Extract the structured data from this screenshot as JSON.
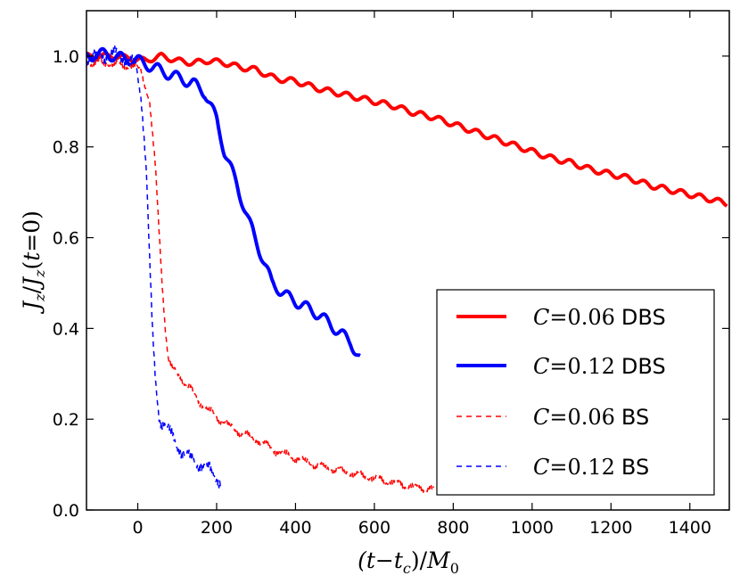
{
  "chart_data": {
    "type": "line",
    "title": "",
    "xlabel": "(t−t_c)/M_0",
    "ylabel": "J_z/J_z(t=0)",
    "xlim": [
      -130,
      1500
    ],
    "ylim": [
      0.0,
      1.1
    ],
    "xticks": [
      0,
      200,
      400,
      600,
      800,
      1000,
      1200,
      1400
    ],
    "yticks": [
      0.0,
      0.2,
      0.4,
      0.6,
      0.8,
      1.0
    ],
    "xtick_labels": [
      "0",
      "200",
      "400",
      "600",
      "800",
      "1000",
      "1200",
      "1400"
    ],
    "ytick_labels": [
      "0.0",
      "0.2",
      "0.4",
      "0.6",
      "0.8",
      "1.0"
    ],
    "grid": false,
    "legend_position": "lower-right",
    "series": [
      {
        "name": "C=0.06 DBS",
        "label_math": "C",
        "label_value": "=0.06",
        "label_suffix": "DBS",
        "color": "#ff0000",
        "style": "solid",
        "x": [
          -130,
          -100,
          -60,
          -20,
          20,
          60,
          100,
          140,
          180,
          220,
          260,
          300,
          350,
          400,
          450,
          500,
          550,
          600,
          650,
          700,
          750,
          800,
          850,
          900,
          950,
          1000,
          1050,
          1100,
          1150,
          1200,
          1250,
          1300,
          1350,
          1400,
          1450,
          1495
        ],
        "y": [
          1.0,
          1.0,
          1.0,
          0.995,
          0.99,
          1.0,
          0.99,
          0.985,
          0.99,
          0.985,
          0.975,
          0.97,
          0.95,
          0.945,
          0.93,
          0.92,
          0.91,
          0.9,
          0.89,
          0.875,
          0.865,
          0.85,
          0.835,
          0.82,
          0.805,
          0.79,
          0.775,
          0.765,
          0.75,
          0.74,
          0.73,
          0.715,
          0.705,
          0.695,
          0.685,
          0.675
        ],
        "wobble": 0.006
      },
      {
        "name": "C=0.12 DBS",
        "label_math": "C",
        "label_value": "=0.12",
        "label_suffix": "DBS",
        "color": "#0000ff",
        "style": "solid",
        "x": [
          -130,
          -80,
          -40,
          0,
          40,
          80,
          110,
          140,
          170,
          200,
          220,
          250,
          280,
          310,
          340,
          380,
          420,
          460,
          500,
          540,
          565
        ],
        "y": [
          1.0,
          1.005,
          0.995,
          0.99,
          0.975,
          0.96,
          0.95,
          0.94,
          0.92,
          0.86,
          0.79,
          0.72,
          0.64,
          0.57,
          0.5,
          0.47,
          0.45,
          0.43,
          0.4,
          0.37,
          0.33
        ],
        "wobble": 0.012
      },
      {
        "name": "C=0.06 BS",
        "label_math": "C",
        "label_value": "=0.06",
        "label_suffix": "BS",
        "color": "#ff0000",
        "style": "dashed",
        "x": [
          -130,
          -80,
          -40,
          -10,
          10,
          30,
          45,
          55,
          62,
          70,
          78,
          85,
          100,
          130,
          160,
          200,
          250,
          300,
          350,
          400,
          450,
          500,
          550,
          600,
          650,
          700,
          750
        ],
        "y": [
          0.985,
          0.985,
          0.98,
          0.978,
          0.965,
          0.9,
          0.75,
          0.6,
          0.5,
          0.4,
          0.33,
          0.315,
          0.3,
          0.27,
          0.235,
          0.205,
          0.175,
          0.155,
          0.13,
          0.115,
          0.1,
          0.09,
          0.08,
          0.07,
          0.06,
          0.05,
          0.045
        ],
        "wobble": 0.006
      },
      {
        "name": "C=0.12 BS",
        "label_math": "C",
        "label_value": "=0.12",
        "label_suffix": "BS",
        "color": "#0000ff",
        "style": "dashed",
        "x": [
          -130,
          -90,
          -60,
          -30,
          -5,
          10,
          22,
          30,
          38,
          45,
          55,
          70,
          100,
          130,
          160,
          190,
          210
        ],
        "y": [
          0.995,
          1.0,
          1.005,
          0.995,
          0.98,
          0.9,
          0.75,
          0.55,
          0.38,
          0.28,
          0.2,
          0.19,
          0.14,
          0.115,
          0.1,
          0.085,
          0.06
        ],
        "wobble": 0.01
      }
    ]
  }
}
